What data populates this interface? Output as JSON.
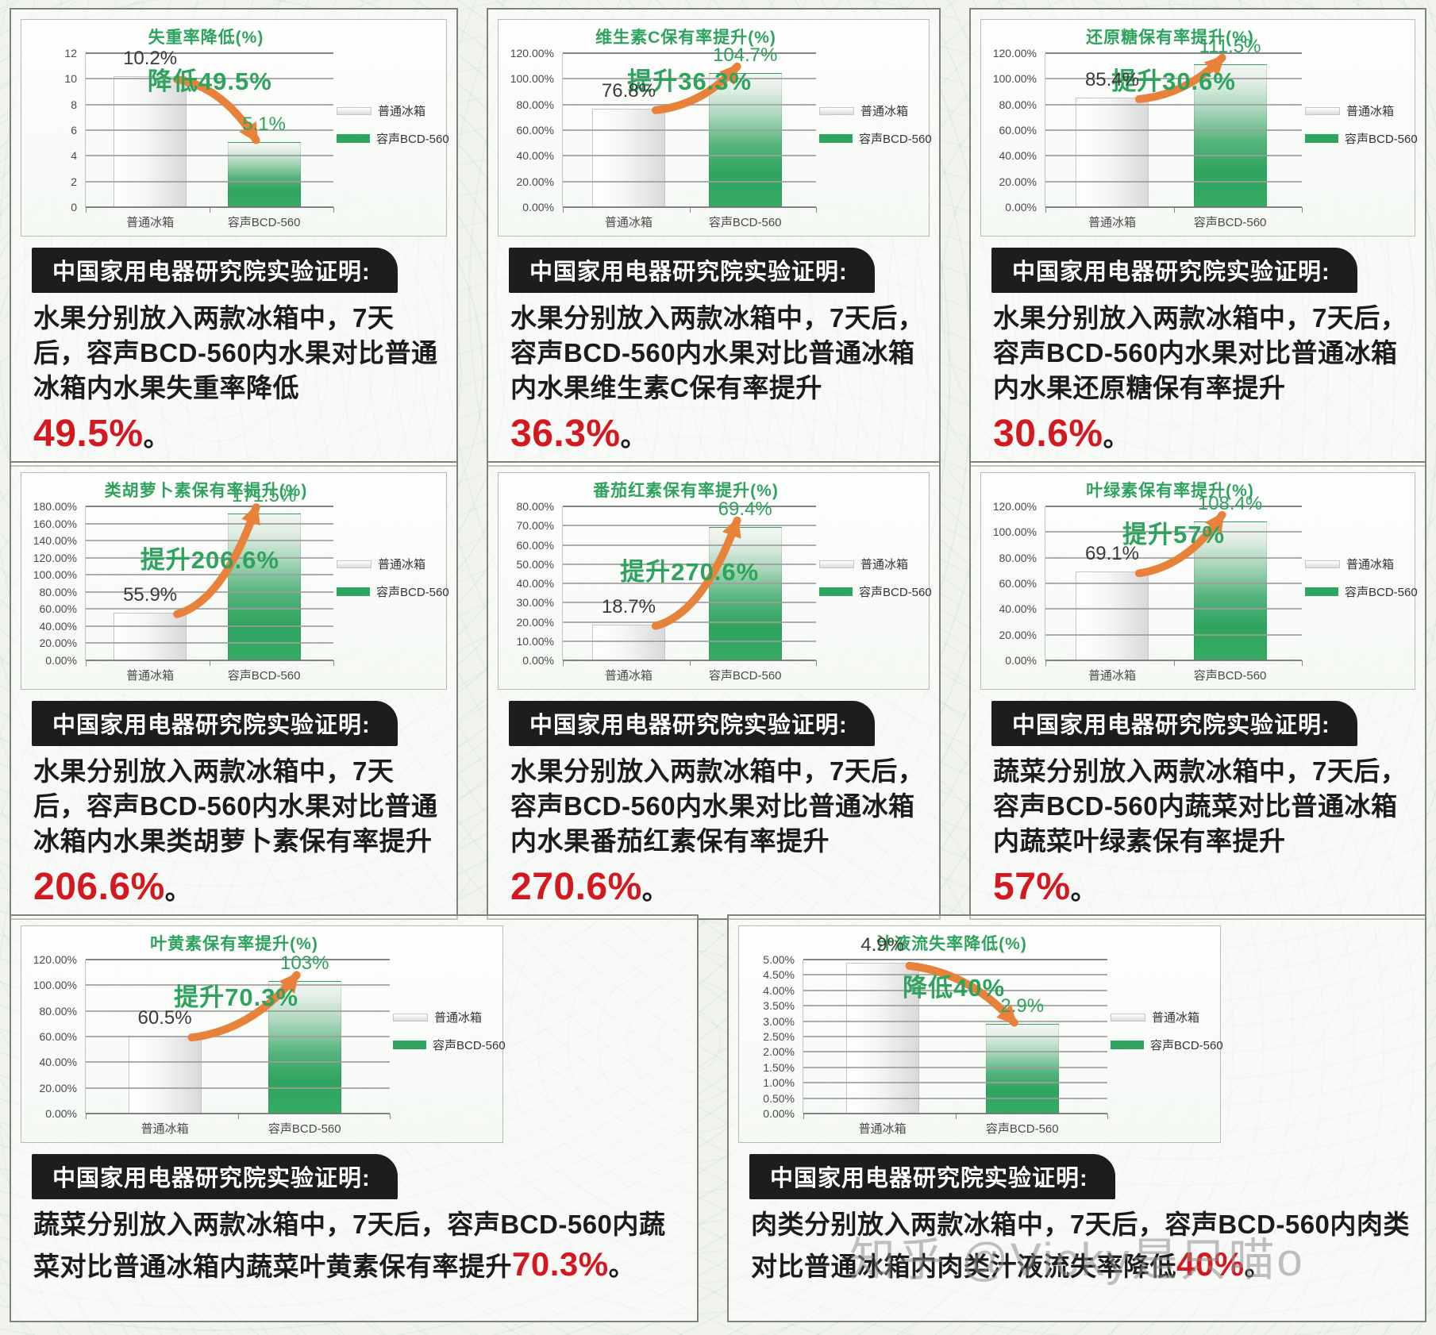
{
  "page": {
    "watermark": "知乎 @Vicky是只喵o",
    "background_color": "#f1f4ee"
  },
  "strings": {
    "header": "中国家用电器研究院实验证明:"
  },
  "colors": {
    "accent_green": "#2ea35d",
    "arrow_orange": "#e8823b",
    "highlight_red": "#d41820",
    "badge_black": "#1d1d1b"
  },
  "chart_data": [
    {
      "type": "bar",
      "title": "失重率降低(%)",
      "categories": [
        "普通冰箱",
        "容声BCD-560"
      ],
      "values": [
        10.2,
        5.1
      ],
      "value_labels": [
        "10.2%",
        "5.1%"
      ],
      "ylim": [
        0,
        12
      ],
      "ytick_labels": [
        "12",
        "10",
        "8",
        "6",
        "4",
        "2",
        "0"
      ],
      "annotation": "降低49.5%",
      "direction": "down",
      "legend": [
        "普通冰箱",
        "容声BCD-560"
      ],
      "legend_position": "right",
      "grid": true
    },
    {
      "type": "bar",
      "title": "维生素C保有率提升(%)",
      "categories": [
        "普通冰箱",
        "容声BCD-560"
      ],
      "values": [
        76.8,
        104.7
      ],
      "value_labels": [
        "76.8%",
        "104.7%"
      ],
      "ylim": [
        0,
        120
      ],
      "ytick_labels": [
        "120.00%",
        "100.00%",
        "80.00%",
        "60.00%",
        "40.00%",
        "20.00%",
        "0.00%"
      ],
      "annotation": "提升36.3%",
      "direction": "up",
      "legend": [
        "普通冰箱",
        "容声BCD-560"
      ],
      "legend_position": "right",
      "grid": true
    },
    {
      "type": "bar",
      "title": "还原糖保有率提升(%)",
      "categories": [
        "普通冰箱",
        "容声BCD-560"
      ],
      "values": [
        85.4,
        111.5
      ],
      "value_labels": [
        "85.4%",
        "111.5%"
      ],
      "ylim": [
        0,
        120
      ],
      "ytick_labels": [
        "120.00%",
        "100.00%",
        "80.00%",
        "60.00%",
        "40.00%",
        "20.00%",
        "0.00%"
      ],
      "annotation": "提升30.6%",
      "direction": "up",
      "legend": [
        "普通冰箱",
        "容声BCD-560"
      ],
      "legend_position": "right",
      "grid": true
    },
    {
      "type": "bar",
      "title": "类胡萝卜素保有率提升(%)",
      "categories": [
        "普通冰箱",
        "容声BCD-560"
      ],
      "values": [
        55.9,
        171.5
      ],
      "value_labels": [
        "55.9%",
        "171.5%"
      ],
      "ylim": [
        0,
        180
      ],
      "ytick_labels": [
        "180.00%",
        "160.00%",
        "140.00%",
        "120.00%",
        "100.00%",
        "80.00%",
        "60.00%",
        "40.00%",
        "20.00%",
        "0.00%"
      ],
      "annotation": "提升206.6%",
      "direction": "up",
      "legend": [
        "普通冰箱",
        "容声BCD-560"
      ],
      "legend_position": "right",
      "grid": true
    },
    {
      "type": "bar",
      "title": "番茄红素保有率提升(%)",
      "categories": [
        "普通冰箱",
        "容声BCD-560"
      ],
      "values": [
        18.7,
        69.4
      ],
      "value_labels": [
        "18.7%",
        "69.4%"
      ],
      "ylim": [
        0,
        80
      ],
      "ytick_labels": [
        "80.00%",
        "70.00%",
        "60.00%",
        "50.00%",
        "40.00%",
        "30.00%",
        "20.00%",
        "10.00%",
        "0.00%"
      ],
      "annotation": "提升270.6%",
      "direction": "up",
      "legend": [
        "普通冰箱",
        "容声BCD-560"
      ],
      "legend_position": "right",
      "grid": true
    },
    {
      "type": "bar",
      "title": "叶绿素保有率提升(%)",
      "categories": [
        "普通冰箱",
        "容声BCD-560"
      ],
      "values": [
        69.1,
        108.4
      ],
      "value_labels": [
        "69.1%",
        "108.4%"
      ],
      "ylim": [
        0,
        120
      ],
      "ytick_labels": [
        "120.00%",
        "100.00%",
        "80.00%",
        "60.00%",
        "40.00%",
        "20.00%",
        "0.00%"
      ],
      "annotation": "提升57%",
      "direction": "up",
      "legend": [
        "普通冰箱",
        "容声BCD-560"
      ],
      "legend_position": "right",
      "grid": true
    },
    {
      "type": "bar",
      "title": "叶黄素保有率提升(%)",
      "categories": [
        "普通冰箱",
        "容声BCD-560"
      ],
      "values": [
        60.5,
        103
      ],
      "value_labels": [
        "60.5%",
        "103%"
      ],
      "ylim": [
        0,
        120
      ],
      "ytick_labels": [
        "120.00%",
        "100.00%",
        "80.00%",
        "60.00%",
        "40.00%",
        "20.00%",
        "0.00%"
      ],
      "annotation": "提升70.3%",
      "direction": "up",
      "legend": [
        "普通冰箱",
        "容声BCD-560"
      ],
      "legend_position": "right",
      "grid": true
    },
    {
      "type": "bar",
      "title": "汁液流失率降低(%)",
      "categories": [
        "普通冰箱",
        "容声BCD-560"
      ],
      "values": [
        4.9,
        2.9
      ],
      "value_labels": [
        "4.9%",
        "2.9%"
      ],
      "ylim": [
        0,
        5
      ],
      "ytick_labels": [
        "5.00%",
        "4.50%",
        "4.00%",
        "3.50%",
        "3.00%",
        "2.50%",
        "2.00%",
        "1.50%",
        "1.00%",
        "0.50%",
        "0.00%"
      ],
      "annotation": "降低40%",
      "direction": "down",
      "legend": [
        "普通冰箱",
        "容声BCD-560"
      ],
      "legend_position": "right",
      "grid": true
    }
  ],
  "panels": [
    {
      "chart_index": 0,
      "desc_body": "水果分别放入两款冰箱中，7天后，容声BCD-560内水果对比普通冰箱内水果失重率降低",
      "desc_red": "49.5%",
      "desc_tail": "。",
      "red_block": true
    },
    {
      "chart_index": 1,
      "desc_body": "水果分别放入两款冰箱中，7天后，容声BCD-560内水果对比普通冰箱内水果维生素C保有率提升",
      "desc_red": "36.3%",
      "desc_tail": "。",
      "red_block": true
    },
    {
      "chart_index": 2,
      "desc_body": "水果分别放入两款冰箱中，7天后，容声BCD-560内水果对比普通冰箱内水果还原糖保有率提升",
      "desc_red": "30.6%",
      "desc_tail": "。",
      "red_block": true
    },
    {
      "chart_index": 3,
      "desc_body": "水果分别放入两款冰箱中，7天后，容声BCD-560内水果对比普通冰箱内水果类胡萝卜素保有率提升",
      "desc_red": "206.6%",
      "desc_tail": "。",
      "red_block": true
    },
    {
      "chart_index": 4,
      "desc_body": "水果分别放入两款冰箱中，7天后，容声BCD-560内水果对比普通冰箱内水果番茄红素保有率提升",
      "desc_red": "270.6%",
      "desc_tail": "。",
      "red_block": true
    },
    {
      "chart_index": 5,
      "desc_body": "蔬菜分别放入两款冰箱中，7天后，容声BCD-560内蔬菜对比普通冰箱内蔬菜叶绿素保有率提升",
      "desc_red": "57%",
      "desc_tail": "。",
      "red_block": true
    },
    {
      "chart_index": 6,
      "desc_body": "蔬菜分别放入两款冰箱中，7天后，容声BCD-560内蔬菜对比普通冰箱内蔬菜叶黄素保有率提升",
      "desc_red": "70.3%",
      "desc_tail": "。",
      "red_block": false
    },
    {
      "chart_index": 7,
      "desc_body": "肉类分别放入两款冰箱中，7天后，容声BCD-560内肉类对比普通冰箱内肉类汁液流失率降低",
      "desc_red": "40%",
      "desc_tail": "。",
      "red_block": false
    }
  ],
  "rows": [
    [
      0,
      1,
      2
    ],
    [
      3,
      4,
      5
    ],
    [
      6,
      7
    ]
  ]
}
